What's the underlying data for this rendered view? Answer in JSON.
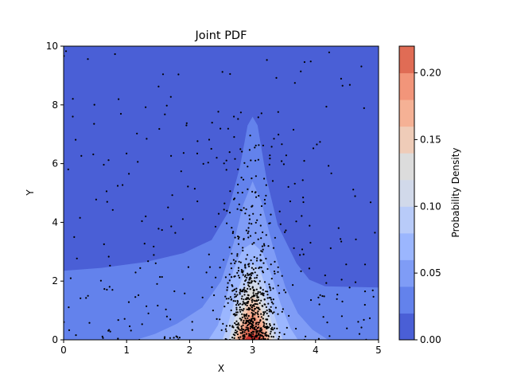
{
  "chart_data": {
    "type": "contour",
    "title": "Joint PDF",
    "xlabel": "X",
    "ylabel": "Y",
    "xlim": [
      0,
      5
    ],
    "ylim": [
      0,
      10
    ],
    "xticks": [
      "0",
      "1",
      "2",
      "3",
      "4",
      "5"
    ],
    "yticks": [
      "0",
      "2",
      "4",
      "6",
      "8",
      "10"
    ],
    "colorbar": {
      "label": "Probability Density",
      "levels": [
        0.0,
        0.02,
        0.04,
        0.06,
        0.08,
        0.1,
        0.12,
        0.14,
        0.16,
        0.18,
        0.2,
        0.22
      ],
      "ticks": [
        "0.00",
        "0.05",
        "0.10",
        "0.15",
        "0.20"
      ],
      "colors": [
        "#4a5fd6",
        "#6382ec",
        "#7f9cf6",
        "#9bb6fe",
        "#b8cbf9",
        "#d1d9ea",
        "#dcdcdc",
        "#efccb8",
        "#f5b195",
        "#f2957a",
        "#e06c55",
        "#c9312f"
      ]
    },
    "scatter": {
      "color": "#000000",
      "approx_count": 900
    }
  }
}
